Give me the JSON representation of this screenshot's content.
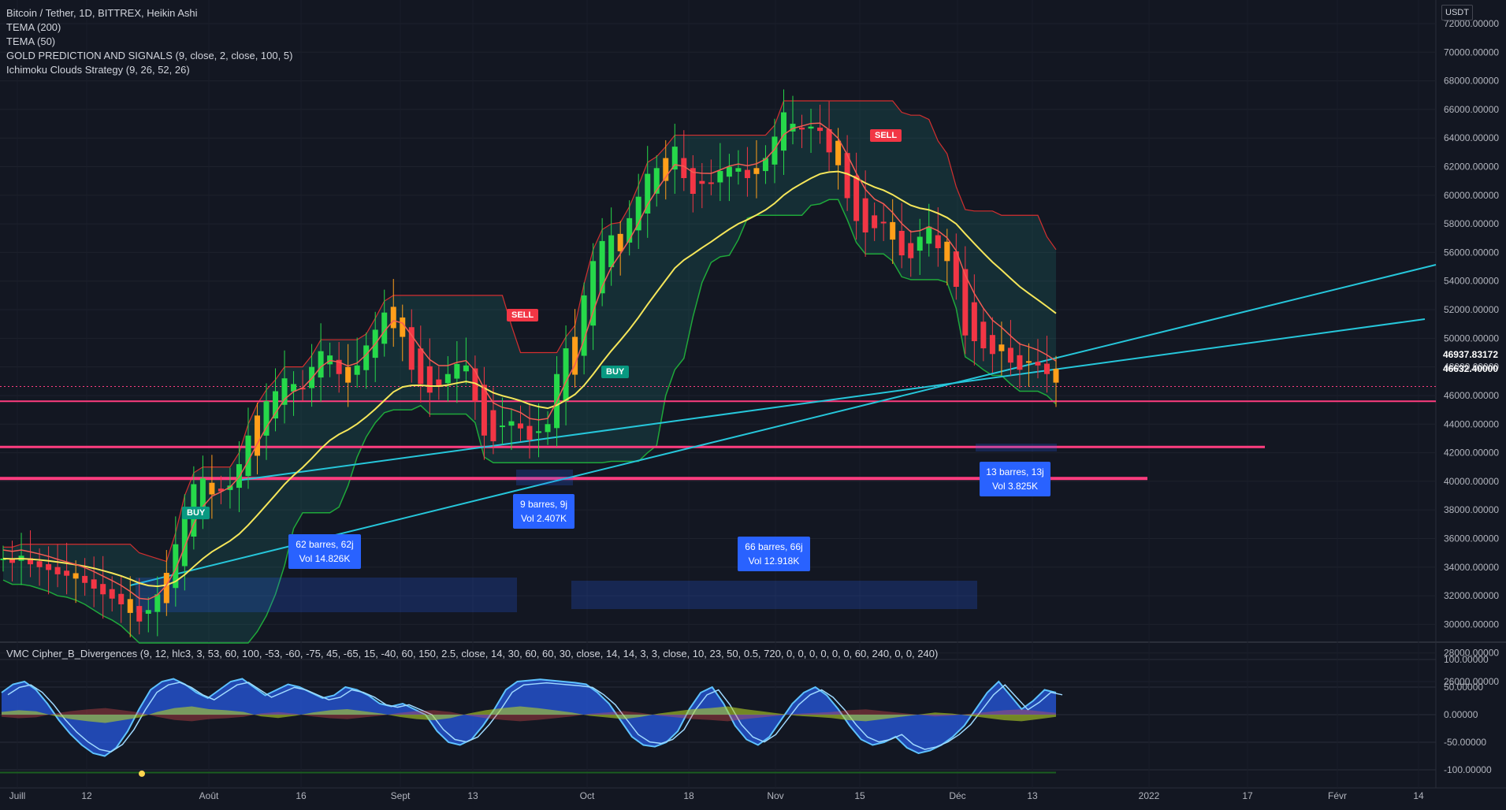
{
  "legend": {
    "title": "Bitcoin / Tether, 1D, BITTREX, Heikin Ashi",
    "lines": [
      "TEMA (200)",
      "TEMA (50)",
      "GOLD PREDICTION AND SIGNALS (9, close, 2, close, 100, 5)",
      "Ichimoku Clouds Strategy (9, 26, 52, 26)"
    ]
  },
  "oscillator_label": "VMC Cipher_B_Divergences (9, 12, hlc3, 3, 53, 60, 100, -53, -60, -75, 45, -65, 15, -40, 60, 150, 2.5, close, 14, 30, 60, 60, 30, close, 14, 14, 3, 3, close, 10, 23, 50, 0.5, 720, 0, 0, 0, 0, 0, 0, 60, 240, 0, 0, 240)",
  "unit": "USDT",
  "price_tags": [
    {
      "text": "46937.83172",
      "color": "#f23645"
    },
    {
      "text": "46632.40000",
      "color": "#f23645"
    }
  ],
  "measure_boxes": [
    {
      "line1": "62 barres, 62j",
      "line2": "Vol 14.826K"
    },
    {
      "line1": "9 barres, 9j",
      "line2": "Vol 2.407K"
    },
    {
      "line1": "66 barres, 66j",
      "line2": "Vol 12.918K"
    },
    {
      "line1": "13 barres, 13j",
      "line2": "Vol 3.825K"
    }
  ],
  "signals": [
    {
      "type": "sell",
      "label": "SELL"
    },
    {
      "type": "sell",
      "label": "SELL"
    },
    {
      "type": "buy",
      "label": "BUY"
    },
    {
      "type": "buy",
      "label": "BUY"
    }
  ],
  "colors": {
    "up": "#26d94a",
    "down": "#f23645",
    "up_alt": "#ff9f1a",
    "tema200": "#f5e65a",
    "tema50": "#f25c54",
    "trend": "#26c6da",
    "hline": "#ff3d7f",
    "osc_blue": "#2962ff"
  },
  "chart_data": [
    {
      "type": "candlestick",
      "title": "Bitcoin / Tether, 1D, BITTREX, Heikin Ashi",
      "x_tick_labels": [
        "Juill",
        "12",
        "Août",
        "16",
        "Sept",
        "13",
        "Oct",
        "18",
        "Nov",
        "15",
        "Déc",
        "13",
        "2022",
        "17",
        "Févr",
        "14"
      ],
      "y_tick_labels": [
        "72000.00000",
        "70000.00000",
        "68000.00000",
        "66000.00000",
        "64000.00000",
        "62000.00000",
        "60000.00000",
        "58000.00000",
        "56000.00000",
        "54000.00000",
        "52000.00000",
        "50000.00000",
        "48000.00000",
        "46000.00000",
        "44000.00000",
        "42000.00000",
        "40000.00000",
        "38000.00000",
        "36000.00000",
        "34000.00000",
        "32000.00000",
        "30000.00000",
        "28000.00000",
        "26000.00000"
      ],
      "ylim": [
        25000,
        73000
      ],
      "close_series": [
        34600,
        34300,
        34800,
        34200,
        34000,
        33800,
        33500,
        33400,
        33200,
        32900,
        32500,
        32100,
        31800,
        31400,
        30800,
        30200,
        31000,
        32100,
        33600,
        35600,
        38200,
        39800,
        40200,
        39900,
        39300,
        39700,
        41200,
        43200,
        44600,
        45600,
        46300,
        47200,
        46800,
        46500,
        48000,
        49100,
        48800,
        47500,
        46900,
        48100,
        49500,
        50600,
        51800,
        52200,
        50100,
        47800,
        46800,
        46200,
        46600,
        47500,
        48200,
        48100,
        45600,
        43200,
        42800,
        43900,
        44200,
        43700,
        42900,
        43500,
        44000,
        47500,
        49300,
        50100,
        53000,
        55400,
        56800,
        57200,
        57300,
        58400,
        59900,
        61500,
        61900,
        62600,
        63400,
        61200,
        60100,
        60800,
        60900,
        61700,
        62000,
        61900,
        61200,
        61900,
        62600,
        64100,
        65800,
        65000,
        64600,
        64800,
        64500,
        63000,
        62100,
        59800,
        58200,
        57400,
        57700,
        58100,
        56900,
        55800,
        55600,
        57100,
        57800,
        56300,
        55400,
        53600,
        50200,
        49800,
        49300,
        48900,
        49100,
        48300,
        47800,
        48400,
        48100,
        47500,
        46900
      ],
      "overlays": {
        "tema200_name": "TEMA (200)",
        "tema50_name": "TEMA (50)",
        "horizontal_levels": [
          46632.4,
          45600,
          42400,
          40200
        ]
      }
    },
    {
      "type": "area",
      "title": "VMC Cipher_B_Divergences",
      "y_tick_labels": [
        "100.00000",
        "50.00000",
        "0.00000",
        "-50.00000",
        "-100.00000"
      ],
      "ylim": [
        -110,
        110
      ],
      "wave_series": [
        40,
        55,
        60,
        45,
        20,
        -10,
        -35,
        -55,
        -70,
        -75,
        -60,
        -30,
        10,
        45,
        60,
        65,
        55,
        40,
        30,
        45,
        60,
        65,
        50,
        35,
        45,
        55,
        50,
        40,
        30,
        35,
        50,
        45,
        35,
        20,
        15,
        20,
        10,
        0,
        -30,
        -50,
        -55,
        -45,
        -20,
        10,
        45,
        60,
        62,
        64,
        62,
        60,
        58,
        55,
        40,
        20,
        -10,
        -40,
        -55,
        -58,
        -50,
        -30,
        10,
        40,
        50,
        20,
        -20,
        -45,
        -55,
        -40,
        -10,
        20,
        40,
        50,
        35,
        10,
        -20,
        -45,
        -55,
        -50,
        -40,
        -60,
        -70,
        -65,
        -55,
        -40,
        -20,
        10,
        40,
        60,
        35,
        10,
        25,
        45,
        40
      ],
      "money_flow_series": [
        5,
        8,
        6,
        -2,
        -8,
        -12,
        -15,
        -10,
        -5,
        5,
        12,
        15,
        10,
        8,
        5,
        -3,
        -6,
        -2,
        4,
        8,
        10,
        6,
        2,
        -4,
        -8,
        -10,
        -6,
        2,
        8,
        12,
        15,
        12,
        8,
        4,
        -2,
        -5,
        -8,
        -4,
        2,
        6,
        10,
        12,
        15,
        10,
        6,
        2,
        -2,
        -4,
        -6,
        -10,
        -12,
        -8,
        -4,
        0,
        4,
        2,
        -2,
        -6,
        -10,
        -12,
        -8,
        -4
      ]
    }
  ]
}
